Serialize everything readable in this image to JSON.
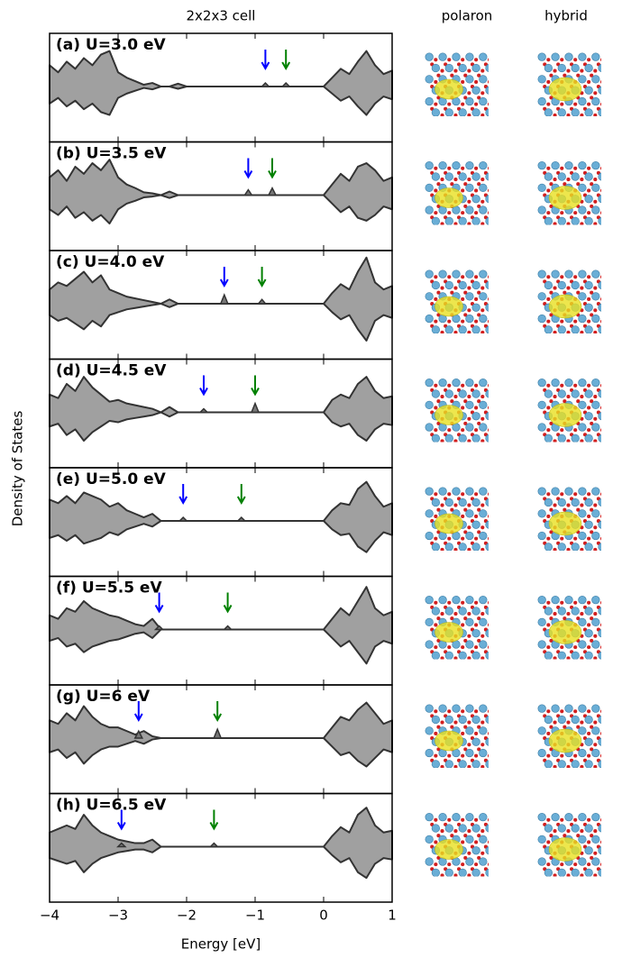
{
  "chart_data": {
    "type": "area",
    "title": "2x2x3 cell",
    "xlabel": "Energy [eV]",
    "ylabel": "Density of States",
    "xlim": [
      -4,
      1
    ],
    "xticks": [
      {
        "value": -4,
        "label": "−4"
      },
      {
        "value": -3,
        "label": "−3"
      },
      {
        "value": -2,
        "label": "−2"
      },
      {
        "value": -1,
        "label": "−1"
      },
      0,
      1
    ],
    "ylim": [
      -1.3,
      1.3
    ],
    "fill_color": "#a0a0a0",
    "markers": [
      {
        "name": "polaron",
        "color": "#0000ff"
      },
      {
        "name": "hybrid",
        "color": "#008000"
      }
    ],
    "x": [
      -4,
      -3.875,
      -3.75,
      -3.625,
      -3.5,
      -3.375,
      -3.25,
      -3.125,
      -3,
      -2.875,
      -2.75,
      -2.625,
      -2.5,
      -2.375,
      -2.25,
      -2.125,
      -2,
      -1.875,
      -1.75,
      -1.625,
      -1.5,
      -1.375,
      -1.25,
      -1.125,
      -1,
      -0.875,
      -0.75,
      -0.625,
      -0.5,
      -0.375,
      -0.25,
      -0.125,
      0,
      0.125,
      0.25,
      0.375,
      0.5,
      0.625,
      0.75,
      0.875,
      1
    ],
    "panels": [
      {
        "label": "(a) U=3.0 eV",
        "values": [
          0.6,
          0.4,
          0.7,
          0.5,
          0.8,
          0.6,
          0.9,
          1.0,
          0.4,
          0.25,
          0.15,
          0.05,
          0.1,
          0,
          0,
          0.08,
          0,
          0,
          0,
          0,
          0,
          0,
          0,
          0,
          0,
          0,
          0,
          0,
          0,
          0,
          0,
          0,
          0,
          0.25,
          0.5,
          0.35,
          0.7,
          1.0,
          0.6,
          0.35,
          0.45
        ],
        "polaron_x": -0.85,
        "polaron_peak": 0.1,
        "hybrid_x": -0.55,
        "hybrid_peak": 0.1
      },
      {
        "label": "(b) U=3.5 eV",
        "values": [
          0.5,
          0.7,
          0.4,
          0.8,
          0.6,
          0.9,
          0.7,
          1.0,
          0.5,
          0.3,
          0.2,
          0.08,
          0.05,
          0,
          0.1,
          0,
          0,
          0,
          0,
          0,
          0,
          0,
          0,
          0,
          0,
          0,
          0,
          0,
          0,
          0,
          0,
          0,
          0,
          0.3,
          0.6,
          0.4,
          0.8,
          0.9,
          0.7,
          0.4,
          0.5
        ],
        "polaron_x": -1.1,
        "polaron_peak": 0.15,
        "hybrid_x": -0.75,
        "hybrid_peak": 0.2
      },
      {
        "label": "(c) U=4.0 eV",
        "values": [
          0.4,
          0.6,
          0.5,
          0.7,
          0.9,
          0.6,
          0.8,
          0.4,
          0.3,
          0.2,
          0.15,
          0.1,
          0.05,
          0,
          0.12,
          0,
          0,
          0,
          0,
          0,
          0,
          0,
          0,
          0,
          0,
          0,
          0,
          0,
          0,
          0,
          0,
          0,
          0,
          0.3,
          0.55,
          0.4,
          0.9,
          1.3,
          0.6,
          0.4,
          0.5
        ],
        "polaron_x": -1.45,
        "polaron_peak": 0.25,
        "hybrid_x": -0.9,
        "hybrid_peak": 0.12
      },
      {
        "label": "(d) U=4.5 eV",
        "values": [
          0.5,
          0.4,
          0.8,
          0.6,
          1.0,
          0.7,
          0.5,
          0.3,
          0.35,
          0.25,
          0.2,
          0.15,
          0.1,
          0,
          0.15,
          0,
          0,
          0,
          0,
          0,
          0,
          0,
          0,
          0,
          0,
          0,
          0,
          0,
          0,
          0,
          0,
          0,
          0,
          0.35,
          0.5,
          0.4,
          0.8,
          1.0,
          0.6,
          0.4,
          0.45
        ],
        "polaron_x": -1.75,
        "polaron_peak": 0.1,
        "hybrid_x": -1.0,
        "hybrid_peak": 0.25
      },
      {
        "label": "(e) U=5.0 eV",
        "values": [
          0.6,
          0.5,
          0.7,
          0.5,
          0.8,
          0.7,
          0.6,
          0.4,
          0.5,
          0.3,
          0.2,
          0.1,
          0.2,
          0,
          0,
          0,
          0,
          0,
          0,
          0,
          0,
          0,
          0,
          0,
          0,
          0,
          0,
          0,
          0,
          0,
          0,
          0,
          0,
          0.3,
          0.5,
          0.45,
          0.9,
          1.1,
          0.7,
          0.4,
          0.5
        ],
        "polaron_x": -2.05,
        "polaron_peak": 0.1,
        "hybrid_x": -1.2,
        "hybrid_peak": 0.1
      },
      {
        "label": "(f) U=5.5 eV",
        "values": [
          0.4,
          0.3,
          0.6,
          0.5,
          0.8,
          0.6,
          0.5,
          0.4,
          0.35,
          0.25,
          0.15,
          0.1,
          0.3,
          0,
          0,
          0,
          0,
          0,
          0,
          0,
          0,
          0,
          0,
          0,
          0,
          0,
          0,
          0,
          0,
          0,
          0,
          0,
          0,
          0.3,
          0.6,
          0.4,
          0.8,
          1.2,
          0.6,
          0.4,
          0.5
        ],
        "polaron_x": -2.4,
        "polaron_peak": 0.1,
        "hybrid_x": -1.4,
        "hybrid_peak": 0.1
      },
      {
        "label": "(g) U=6 eV",
        "values": [
          0.5,
          0.4,
          0.7,
          0.5,
          0.9,
          0.6,
          0.4,
          0.3,
          0.3,
          0.2,
          0.1,
          0.2,
          0.05,
          0,
          0,
          0,
          0,
          0,
          0,
          0,
          0,
          0,
          0,
          0,
          0,
          0,
          0,
          0,
          0,
          0,
          0,
          0,
          0,
          0.3,
          0.6,
          0.5,
          0.8,
          1.0,
          0.7,
          0.4,
          0.5
        ],
        "polaron_x": -2.7,
        "polaron_peak": 0.2,
        "hybrid_x": -1.55,
        "hybrid_peak": 0.25
      },
      {
        "label": "(h) U=6.5 eV",
        "values": [
          0.4,
          0.5,
          0.6,
          0.5,
          0.9,
          0.6,
          0.4,
          0.3,
          0.2,
          0.15,
          0.1,
          0.1,
          0.2,
          0,
          0,
          0,
          0,
          0,
          0,
          0,
          0,
          0,
          0,
          0,
          0,
          0,
          0,
          0,
          0,
          0,
          0,
          0,
          0,
          0.3,
          0.55,
          0.4,
          0.9,
          1.1,
          0.6,
          0.4,
          0.45
        ],
        "polaron_x": -2.95,
        "polaron_peak": 0.1,
        "hybrid_x": -1.6,
        "hybrid_peak": 0.1
      }
    ]
  }
}
